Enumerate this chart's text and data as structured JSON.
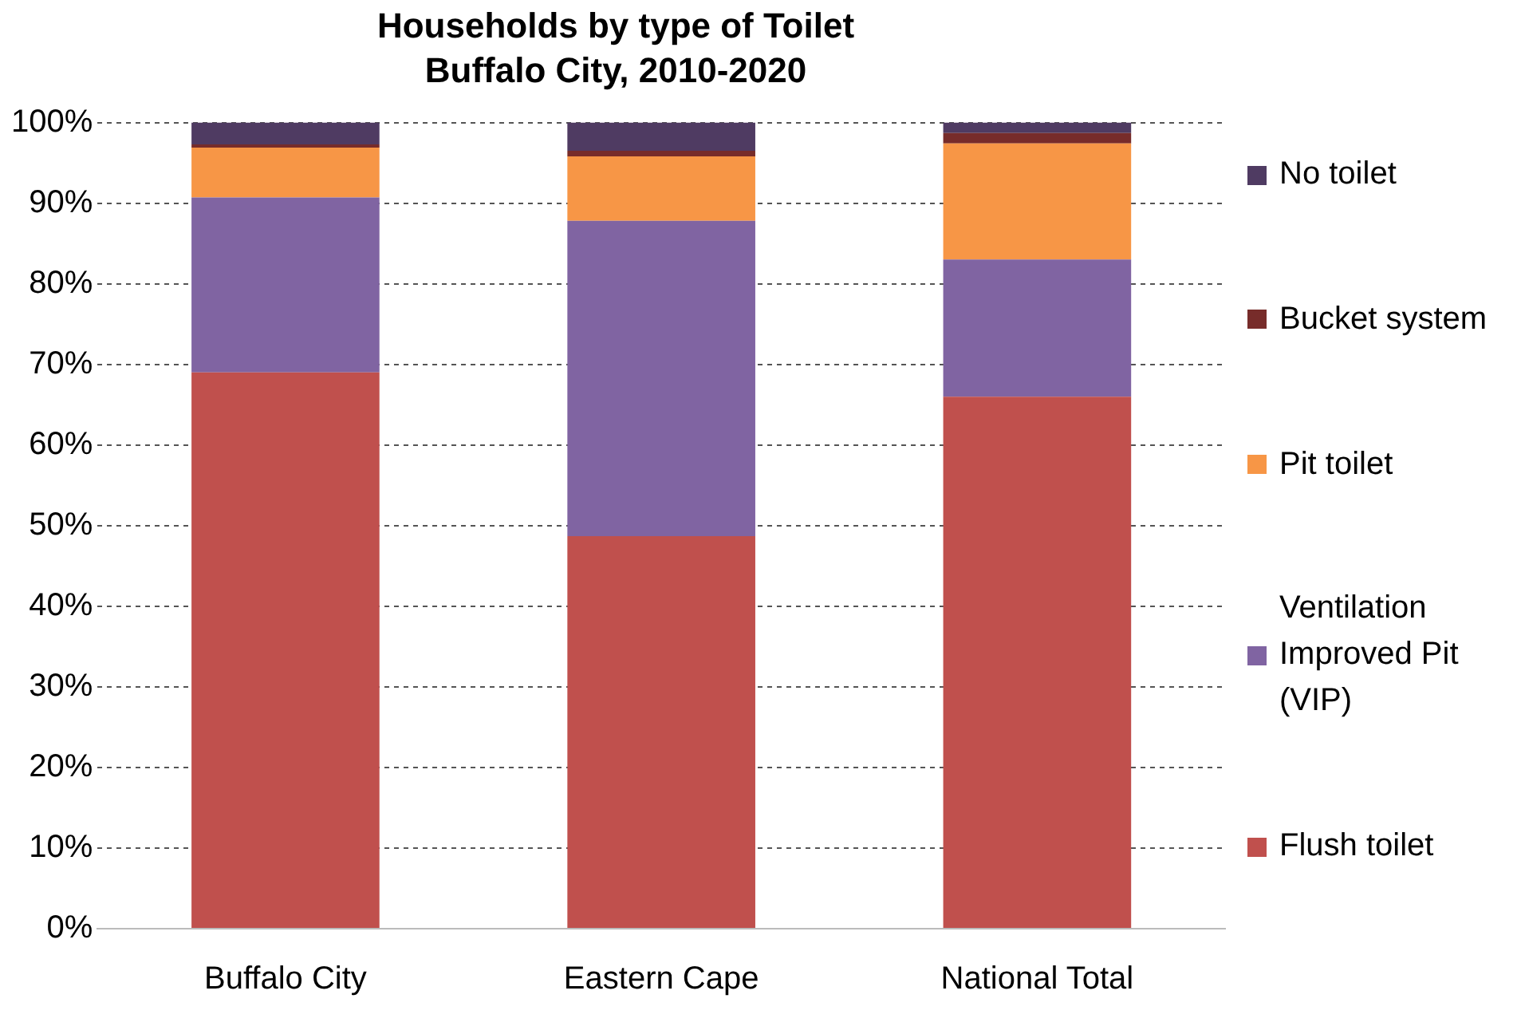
{
  "chart_data": {
    "type": "bar",
    "title": "Households by type of Toilet",
    "subtitle": "Buffalo City, 2010-2020",
    "categories": [
      "Buffalo City",
      "Eastern Cape",
      "National Total"
    ],
    "stacked": true,
    "series": [
      {
        "name": "Flush toilet",
        "color": "#c0504d",
        "values": [
          69.0,
          48.7,
          66.0
        ]
      },
      {
        "name": "Ventilation Improved Pit (VIP)",
        "color": "#8064a2",
        "values": [
          21.7,
          39.1,
          17.0
        ]
      },
      {
        "name": "Pit toilet",
        "color": "#f79646",
        "values": [
          6.2,
          8.0,
          14.4
        ]
      },
      {
        "name": "Bucket system",
        "color": "#772c2a",
        "values": [
          0.4,
          0.7,
          1.3
        ]
      },
      {
        "name": "No toilet",
        "color": "#4f3b62",
        "values": [
          2.7,
          3.5,
          1.3
        ]
      }
    ],
    "ylim": [
      0,
      100
    ],
    "yticks": [
      {
        "value": 0,
        "label": "0%"
      },
      {
        "value": 10,
        "label": "10%"
      },
      {
        "value": 20,
        "label": "20%"
      },
      {
        "value": 30,
        "label": "30%"
      },
      {
        "value": 40,
        "label": "40%"
      },
      {
        "value": 50,
        "label": "50%"
      },
      {
        "value": 60,
        "label": "60%"
      },
      {
        "value": 70,
        "label": "70%"
      },
      {
        "value": 80,
        "label": "80%"
      },
      {
        "value": 90,
        "label": "90%"
      },
      {
        "value": 100,
        "label": "100%"
      }
    ],
    "grid": "y",
    "legend": "right"
  }
}
